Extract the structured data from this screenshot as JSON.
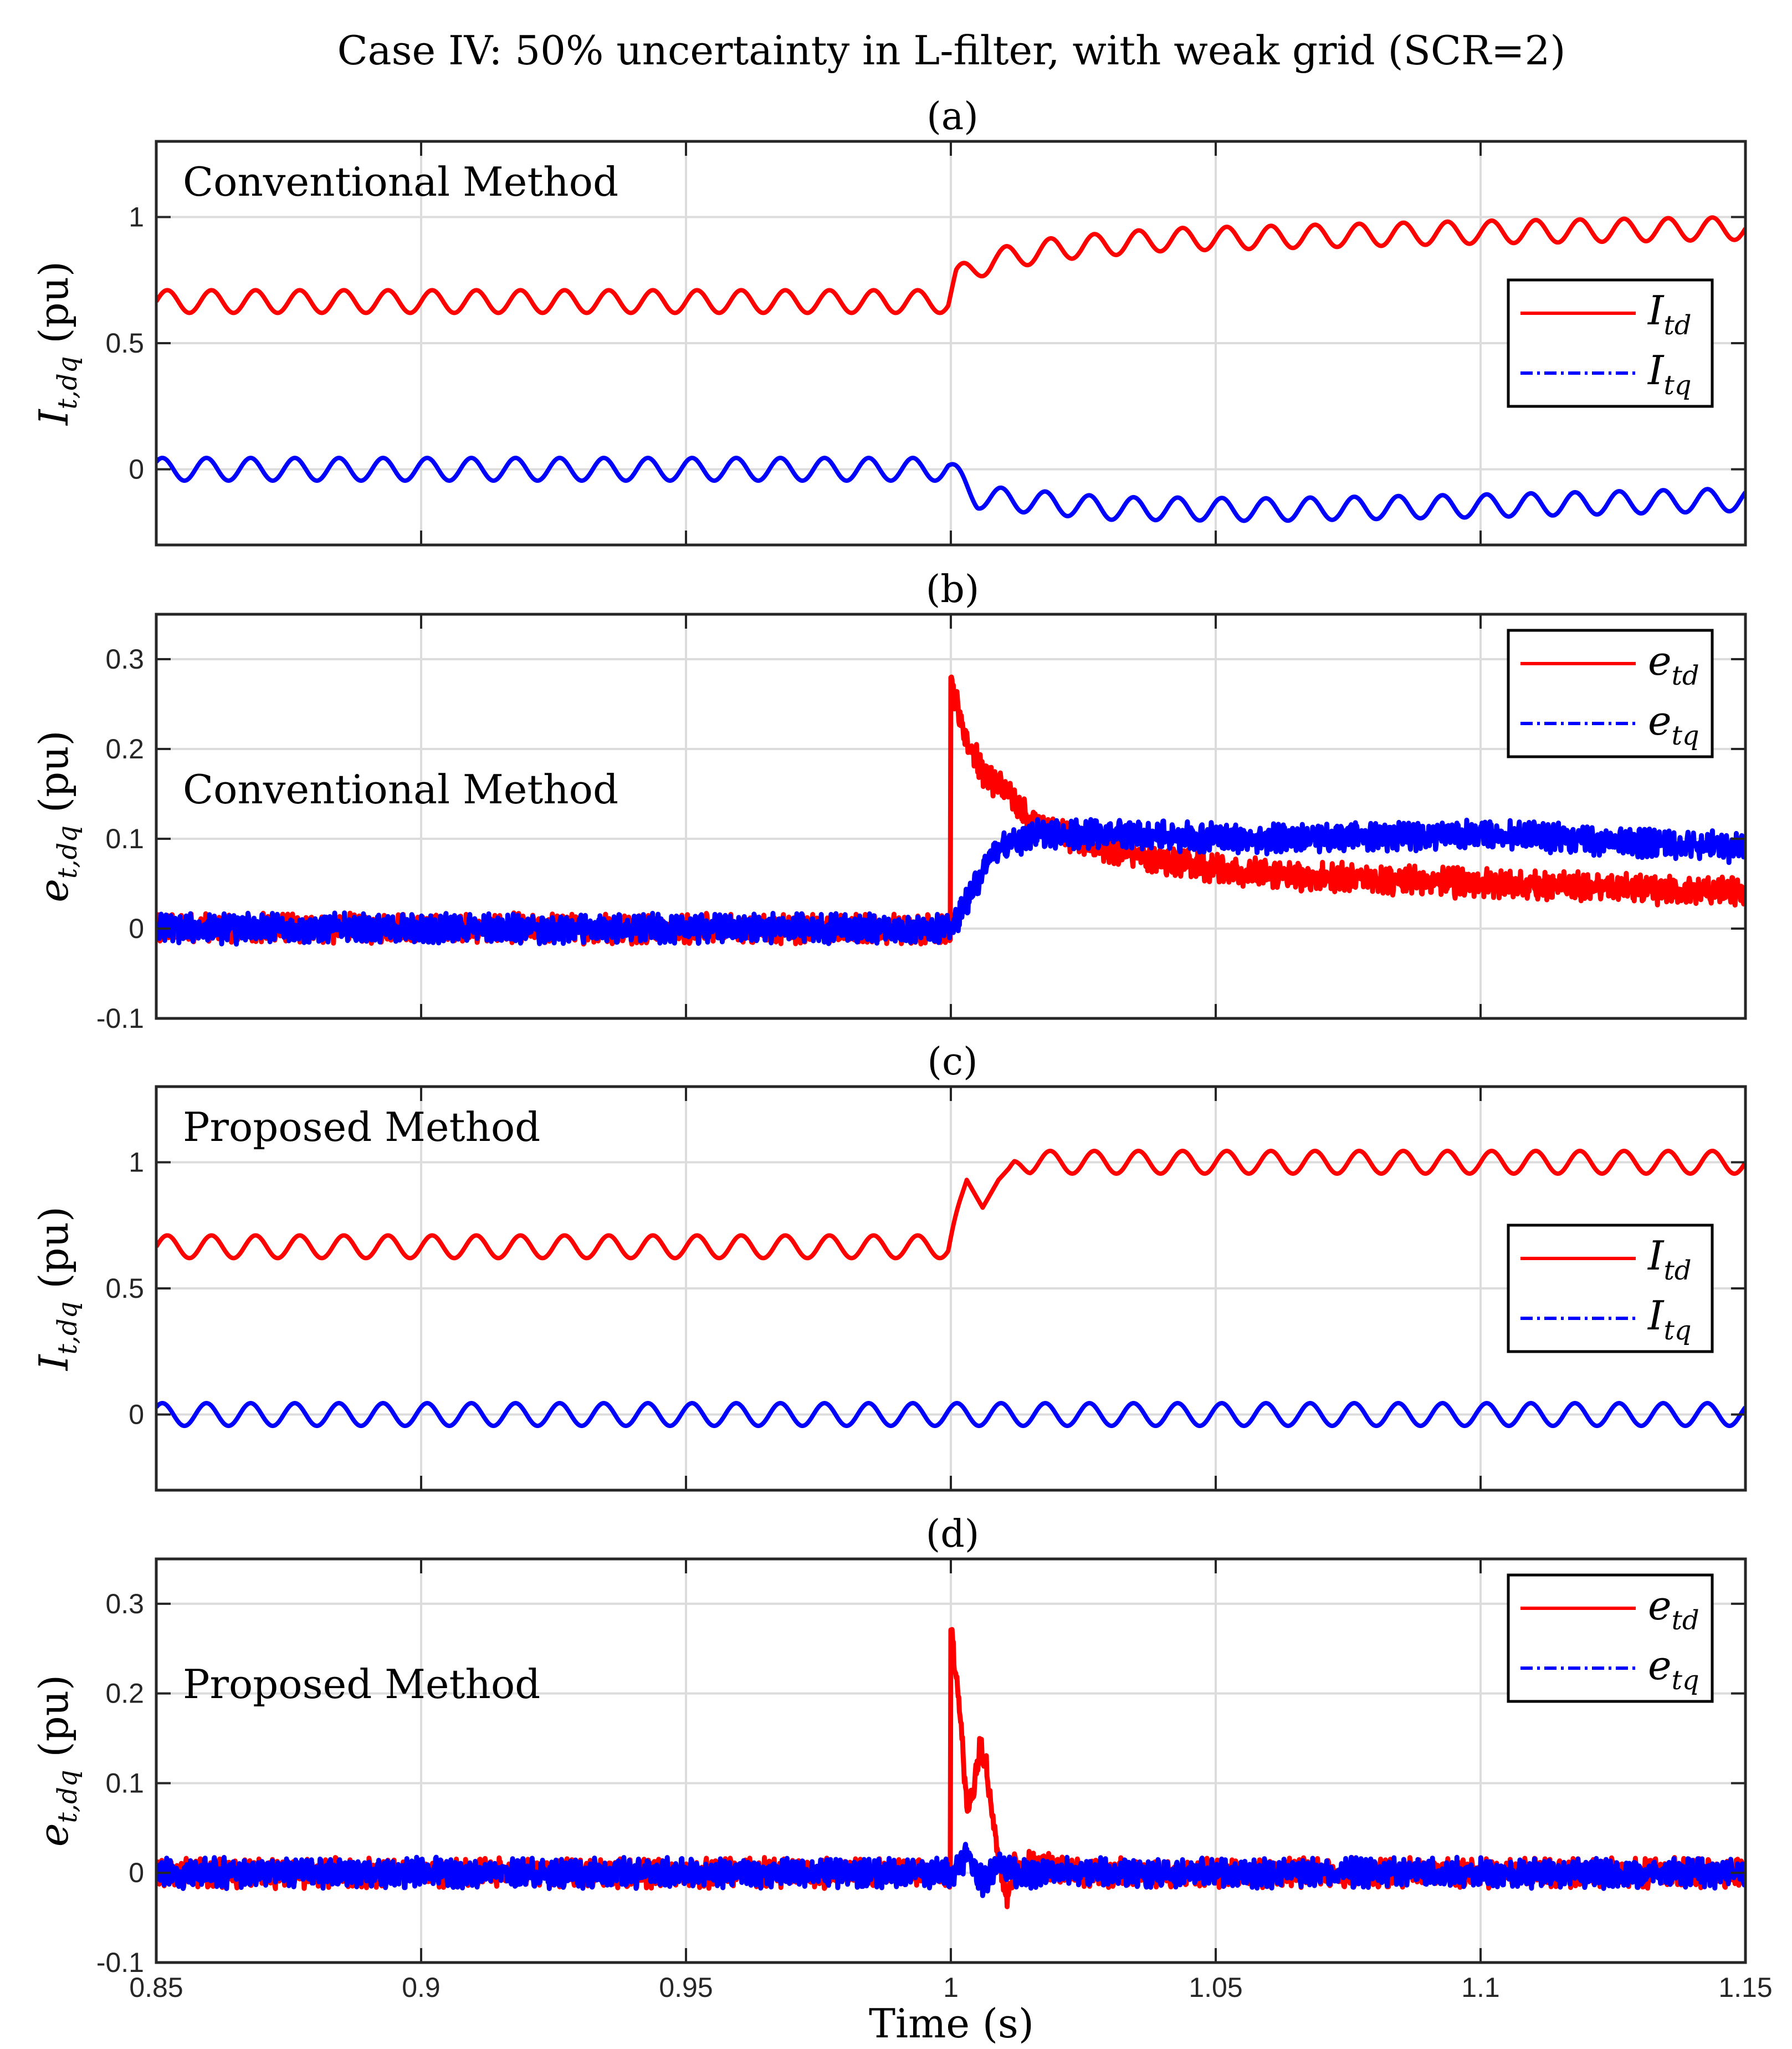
{
  "figure_title": "Case IV: 50% uncertainty in L-filter, with weak grid (SCR=2)",
  "colors": {
    "td": "#ff0000",
    "tq": "#0000ff",
    "grid": "#dcdcdc",
    "axis": "#262626",
    "background": "#ffffff"
  },
  "chart_data": [
    {
      "type": "line",
      "panel_label": "(a)",
      "annotation": "Conventional Method",
      "ylabel": {
        "symbol": "I",
        "sub": "t,dq",
        "unit": " (pu)"
      },
      "xlabel": "",
      "xlim": [
        0.85,
        1.15
      ],
      "ylim": [
        -0.3,
        1.3
      ],
      "yticks": [
        0,
        0.5,
        1
      ],
      "ytick_labels": [
        "0",
        "0.5",
        "1"
      ],
      "xticks": [
        0.85,
        0.9,
        0.95,
        1,
        1.05,
        1.1,
        1.15
      ],
      "xtick_labels": [],
      "grid": true,
      "legend_position": "right",
      "series": [
        {
          "name": "I_td",
          "legend_main": "I",
          "legend_sub": "td",
          "color": "#ff0000",
          "dash": "solid",
          "noise": 0,
          "base": [
            [
              0.85,
              0.665
            ],
            [
              0.9995,
              0.665
            ],
            [
              1.001,
              0.76
            ],
            [
              1.008,
              0.83
            ],
            [
              1.02,
              0.875
            ],
            [
              1.04,
              0.91
            ],
            [
              1.07,
              0.925
            ],
            [
              1.1,
              0.94
            ],
            [
              1.15,
              0.955
            ]
          ],
          "osc": [
            [
              0.85,
              0.045
            ],
            [
              0.9995,
              0.045
            ],
            [
              1.001,
              0.045
            ],
            [
              1.15,
              0.045
            ]
          ],
          "freq": 120
        },
        {
          "name": "I_tq",
          "legend_main": "I",
          "legend_sub": "tq",
          "color": "#0000ff",
          "dash": "dashdot",
          "noise": 0,
          "base": [
            [
              0.85,
              0.0
            ],
            [
              0.9995,
              0.0
            ],
            [
              1.005,
              -0.11
            ],
            [
              1.03,
              -0.155
            ],
            [
              1.06,
              -0.16
            ],
            [
              1.1,
              -0.145
            ],
            [
              1.15,
              -0.12
            ]
          ],
          "osc": [
            [
              0.85,
              0.045
            ],
            [
              1.15,
              0.045
            ]
          ],
          "freq": 120
        }
      ]
    },
    {
      "type": "line",
      "panel_label": "(b)",
      "annotation": "Conventional Method",
      "ylabel": {
        "symbol": "e",
        "sub": "t,dq",
        "unit": " (pu)"
      },
      "xlabel": "",
      "xlim": [
        0.85,
        1.15
      ],
      "ylim": [
        -0.1,
        0.35
      ],
      "yticks": [
        -0.1,
        0,
        0.1,
        0.2,
        0.3
      ],
      "ytick_labels": [
        "-0.1",
        "0",
        "0.1",
        "0.2",
        "0.3"
      ],
      "xticks": [
        0.85,
        0.9,
        0.95,
        1,
        1.05,
        1.1,
        1.15
      ],
      "xtick_labels": [],
      "grid": true,
      "legend_position": "top-right",
      "series": [
        {
          "name": "e_td",
          "legend_main": "e",
          "legend_sub": "td",
          "color": "#ff0000",
          "dash": "solid",
          "noise": 0.011,
          "base": [
            [
              0.85,
              0.0
            ],
            [
              0.9999,
              0.0
            ],
            [
              1.0,
              0.27
            ],
            [
              1.003,
              0.21
            ],
            [
              1.006,
              0.175
            ],
            [
              1.01,
              0.155
            ],
            [
              1.015,
              0.12
            ],
            [
              1.025,
              0.095
            ],
            [
              1.04,
              0.075
            ],
            [
              1.06,
              0.06
            ],
            [
              1.08,
              0.055
            ],
            [
              1.1,
              0.05
            ],
            [
              1.15,
              0.04
            ]
          ],
          "osc": [
            [
              0.85,
              0.0
            ],
            [
              1.15,
              0.0
            ]
          ],
          "freq": 120
        },
        {
          "name": "e_tq",
          "legend_main": "e",
          "legend_sub": "tq",
          "color": "#0000ff",
          "dash": "dashdot",
          "noise": 0.011,
          "base": [
            [
              0.85,
              0.0
            ],
            [
              1.0,
              0.0
            ],
            [
              1.003,
              0.03
            ],
            [
              1.008,
              0.085
            ],
            [
              1.015,
              0.105
            ],
            [
              1.03,
              0.105
            ],
            [
              1.06,
              0.1
            ],
            [
              1.1,
              0.105
            ],
            [
              1.15,
              0.09
            ]
          ],
          "osc": [
            [
              0.85,
              0.0
            ],
            [
              1.15,
              0.0
            ]
          ],
          "freq": 120
        }
      ]
    },
    {
      "type": "line",
      "panel_label": "(c)",
      "annotation": "Proposed Method",
      "ylabel": {
        "symbol": "I",
        "sub": "t,dq",
        "unit": " (pu)"
      },
      "xlabel": "",
      "xlim": [
        0.85,
        1.15
      ],
      "ylim": [
        -0.3,
        1.3
      ],
      "yticks": [
        0,
        0.5,
        1
      ],
      "ytick_labels": [
        "0",
        "0.5",
        "1"
      ],
      "xticks": [
        0.85,
        0.9,
        0.95,
        1,
        1.05,
        1.1,
        1.15
      ],
      "xtick_labels": [],
      "grid": true,
      "legend_position": "right",
      "series": [
        {
          "name": "I_td",
          "legend_main": "I",
          "legend_sub": "td",
          "color": "#ff0000",
          "dash": "solid",
          "noise": 0,
          "base": [
            [
              0.85,
              0.665
            ],
            [
              0.9995,
              0.665
            ],
            [
              1.003,
              0.93
            ],
            [
              1.006,
              0.82
            ],
            [
              1.009,
              0.93
            ],
            [
              1.012,
              1.0
            ],
            [
              1.02,
              1.0
            ],
            [
              1.15,
              1.0
            ]
          ],
          "osc": [
            [
              0.85,
              0.045
            ],
            [
              0.9995,
              0.045
            ],
            [
              1.003,
              0.0
            ],
            [
              1.011,
              0.0
            ],
            [
              1.015,
              0.045
            ],
            [
              1.15,
              0.045
            ]
          ],
          "freq": 120
        },
        {
          "name": "I_tq",
          "legend_main": "I",
          "legend_sub": "tq",
          "color": "#0000ff",
          "dash": "dashdot",
          "noise": 0,
          "base": [
            [
              0.85,
              0.0
            ],
            [
              1.15,
              0.0
            ]
          ],
          "osc": [
            [
              0.85,
              0.045
            ],
            [
              1.15,
              0.045
            ]
          ],
          "freq": 120
        }
      ]
    },
    {
      "type": "line",
      "panel_label": "(d)",
      "annotation": "Proposed Method",
      "ylabel": {
        "symbol": "e",
        "sub": "t,dq",
        "unit": " (pu)"
      },
      "xlabel": "Time (s)",
      "xlim": [
        0.85,
        1.15
      ],
      "ylim": [
        -0.1,
        0.35
      ],
      "yticks": [
        -0.1,
        0,
        0.1,
        0.2,
        0.3
      ],
      "ytick_labels": [
        "-0.1",
        "0",
        "0.1",
        "0.2",
        "0.3"
      ],
      "xticks": [
        0.85,
        0.9,
        0.95,
        1,
        1.05,
        1.1,
        1.15
      ],
      "xtick_labels": [
        "0.85",
        "0.9",
        "0.95",
        "1",
        "1.05",
        "1.1",
        "1.15"
      ],
      "grid": true,
      "legend_position": "top-right",
      "series": [
        {
          "name": "e_td",
          "legend_main": "e",
          "legend_sub": "td",
          "color": "#ff0000",
          "dash": "solid",
          "noise": 0.011,
          "base": [
            [
              0.85,
              0.0
            ],
            [
              0.9999,
              0.0
            ],
            [
              1.0,
              0.27
            ],
            [
              1.0015,
              0.2
            ],
            [
              1.003,
              0.07
            ],
            [
              1.0045,
              0.1
            ],
            [
              1.0055,
              0.145
            ],
            [
              1.0065,
              0.13
            ],
            [
              1.008,
              0.06
            ],
            [
              1.0095,
              0.0
            ],
            [
              1.0105,
              -0.025
            ],
            [
              1.012,
              0.005
            ],
            [
              1.015,
              0.01
            ],
            [
              1.025,
              0.0
            ],
            [
              1.15,
              0.0
            ]
          ],
          "osc": [
            [
              0.85,
              0.0
            ],
            [
              1.15,
              0.0
            ]
          ],
          "freq": 120
        },
        {
          "name": "e_tq",
          "legend_main": "e",
          "legend_sub": "tq",
          "color": "#0000ff",
          "dash": "dashdot",
          "noise": 0.011,
          "base": [
            [
              0.85,
              0.0
            ],
            [
              1.0,
              0.0
            ],
            [
              1.003,
              0.02
            ],
            [
              1.006,
              -0.01
            ],
            [
              1.009,
              0.01
            ],
            [
              1.012,
              0.0
            ],
            [
              1.15,
              0.0
            ]
          ],
          "osc": [
            [
              0.85,
              0.0
            ],
            [
              1.15,
              0.0
            ]
          ],
          "freq": 120
        }
      ]
    }
  ]
}
